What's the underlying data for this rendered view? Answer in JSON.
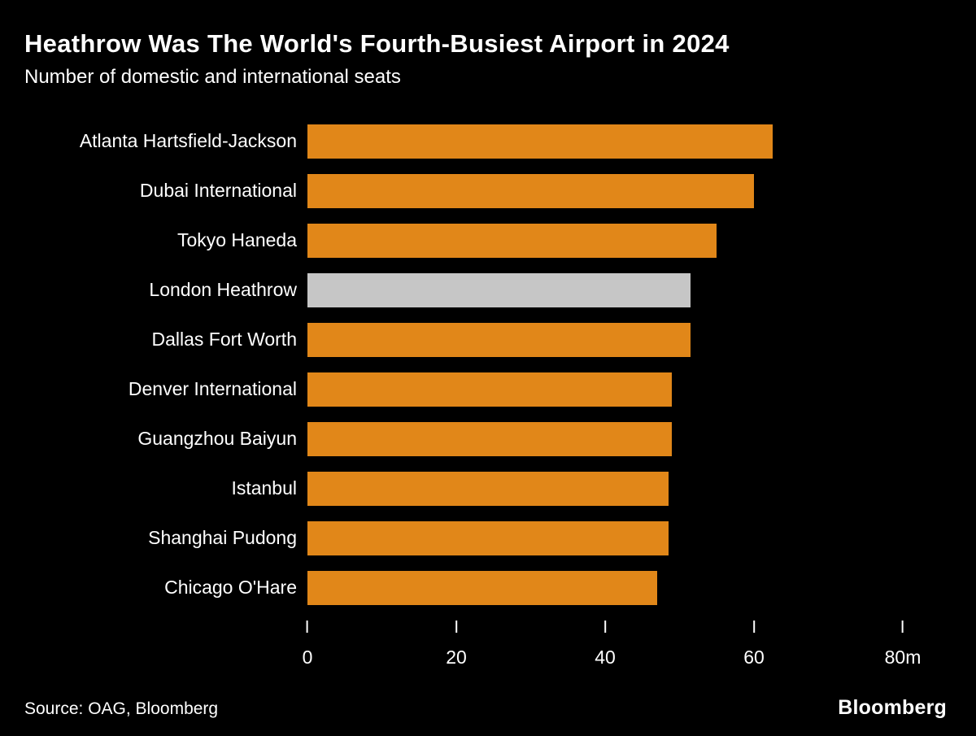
{
  "header": {
    "title": "Heathrow Was The World's Fourth-Busiest Airport in 2024",
    "subtitle": "Number of domestic and international seats"
  },
  "chart_data": {
    "type": "bar",
    "orientation": "horizontal",
    "title": "Heathrow Was The World's Fourth-Busiest Airport in 2024",
    "subtitle": "Number of domestic and international seats",
    "categories": [
      "Atlanta Hartsfield-Jackson",
      "Dubai International",
      "Tokyo Haneda",
      "London Heathrow",
      "Dallas Fort Worth",
      "Denver International",
      "Guangzhou Baiyun",
      "Istanbul",
      "Shanghai Pudong",
      "Chicago O'Hare"
    ],
    "values": [
      62.5,
      60,
      55,
      51.5,
      51.5,
      49,
      49,
      48.5,
      48.5,
      47
    ],
    "highlight_category": "London Heathrow",
    "colors": {
      "background": "#000000",
      "bar": "#E18719",
      "highlight": "#C6C6C6",
      "text": "#FFFFFF"
    },
    "xlim": [
      0,
      80
    ],
    "x_ticks": [
      {
        "value": 0,
        "label": "0"
      },
      {
        "value": 20,
        "label": "20"
      },
      {
        "value": 40,
        "label": "40"
      },
      {
        "value": 60,
        "label": "60"
      },
      {
        "value": 80,
        "label": "80m"
      }
    ],
    "grid": false,
    "legend": "none"
  },
  "footer": {
    "source": "Source: OAG, Bloomberg",
    "brand": "Bloomberg"
  }
}
